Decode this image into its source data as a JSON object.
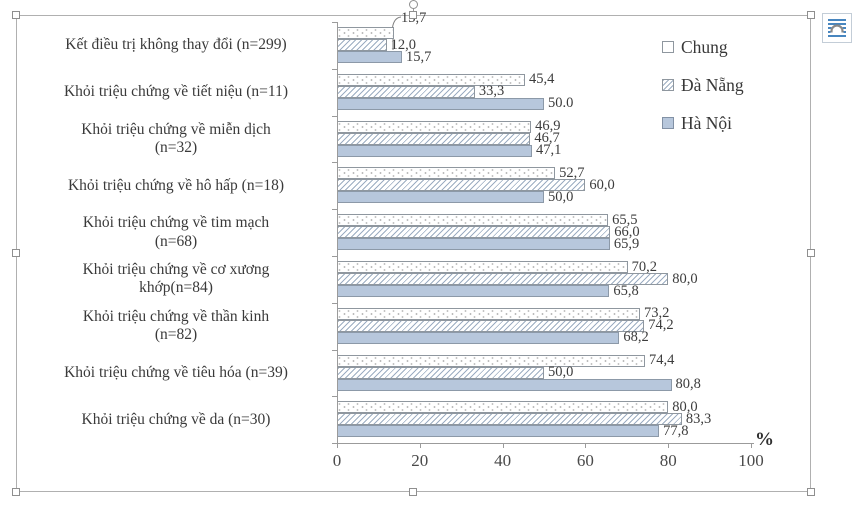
{
  "icons": {
    "layout_options": "layout-options-text-wrap-icon",
    "rotate_handle": "rotate-handle-icon"
  },
  "chart_data": {
    "type": "bar",
    "orientation": "horizontal",
    "title": "",
    "xlabel": "%",
    "ylabel": "",
    "xlim": [
      0,
      100
    ],
    "x_ticks": [
      0,
      20,
      40,
      60,
      80,
      100
    ],
    "grid": false,
    "legend_position": "top-right",
    "categories": [
      [
        "Kết điều trị không thay đổi (n=299)"
      ],
      [
        "Khỏi triệu chứng về tiết niệu (n=11)"
      ],
      [
        "Khỏi triệu chứng về miễn dịch",
        "(n=32)"
      ],
      [
        "Khỏi triệu chứng về hô hấp (n=18)"
      ],
      [
        "Khỏi triệu chứng về tim mạch",
        "(n=68)"
      ],
      [
        "Khỏi triệu chứng về cơ xương",
        "khớp(n=84)"
      ],
      [
        "Khỏi triệu chứng về thần kinh",
        "(n=82)"
      ],
      [
        "Khỏi triệu chứng về tiêu hóa (n=39)"
      ],
      [
        "Khỏi triệu chứng về da (n=30)"
      ]
    ],
    "series": [
      {
        "name": "Chung",
        "pattern": "plain",
        "values": [
          13.7,
          45.4,
          46.9,
          52.7,
          65.5,
          70.2,
          73.2,
          74.4,
          80.0
        ],
        "value_labels": [
          "13,7",
          "45,4",
          "46,9",
          "52,7",
          "65,5",
          "70,2",
          "73,2",
          "74,4",
          "80,0"
        ]
      },
      {
        "name": "Đà Nẵng",
        "pattern": "hatch",
        "values": [
          12.0,
          33.3,
          46.7,
          60.0,
          66.0,
          80.0,
          74.2,
          50.0,
          83.3
        ],
        "value_labels": [
          "12,0",
          "33,3",
          "46,7",
          "60,0",
          "66,0",
          "80,0",
          "74,2",
          "50,0",
          "83,3"
        ]
      },
      {
        "name": "Hà Nội",
        "pattern": "solid",
        "values": [
          15.7,
          50.0,
          47.1,
          50.0,
          65.9,
          65.8,
          68.2,
          80.8,
          77.8
        ],
        "value_labels": [
          "15,7",
          "50.0",
          "47,1",
          "50,0",
          "65,9",
          "65,8",
          "68,2",
          "80,8",
          "77,8"
        ]
      }
    ],
    "colors": {
      "solid_fill": "#b7c7dc",
      "bar_border": "#8f979f",
      "hatch_line": "#9cadc2",
      "axis": "#9b9b9b",
      "text": "#3c3c3c"
    }
  }
}
